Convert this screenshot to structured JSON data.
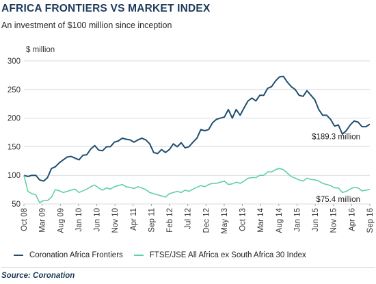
{
  "header": {
    "title": "AFRICA FRONTIERS VS MARKET INDEX",
    "subtitle": "An investment of $100 million since inception"
  },
  "chart_data": {
    "type": "line",
    "title": "AFRICA FRONTIERS VS MARKET INDEX",
    "subtitle": "An investment of $100 million since inception",
    "ylabel": "$ million",
    "xlabel": "",
    "ylim": [
      50,
      300
    ],
    "yticks": [
      50,
      100,
      150,
      200,
      250,
      300
    ],
    "x_tick_labels": [
      "Oct 08",
      "Mar 09",
      "Aug 09",
      "Jan 10",
      "Jun 10",
      "Nov 10",
      "Apr 11",
      "Sep 11",
      "Feb 12",
      "Jul 12",
      "Dec 12",
      "May 13",
      "Oct 13",
      "Mar 14",
      "Aug 14",
      "Jan 15",
      "Jun 15",
      "Nov 15",
      "Apr 16",
      "Sep 16"
    ],
    "grid": "horizontal",
    "legend_position": "bottom",
    "series": [
      {
        "name": "Coronation Africa Frontiers",
        "color": "#1e4e6e",
        "end_label": "$189.3 million",
        "values": [
          100,
          98,
          100,
          100,
          92,
          90,
          96,
          112,
          115,
          122,
          127,
          132,
          133,
          130,
          127,
          135,
          136,
          146,
          152,
          144,
          143,
          150,
          150,
          158,
          160,
          165,
          163,
          162,
          158,
          162,
          165,
          162,
          155,
          140,
          138,
          145,
          140,
          145,
          155,
          150,
          157,
          148,
          150,
          158,
          165,
          180,
          178,
          180,
          192,
          198,
          200,
          202,
          215,
          200,
          215,
          205,
          218,
          230,
          235,
          230,
          240,
          240,
          252,
          255,
          265,
          272,
          273,
          263,
          255,
          250,
          240,
          238,
          248,
          240,
          232,
          215,
          205,
          205,
          198,
          186,
          188,
          172,
          178,
          188,
          195,
          193,
          185,
          185,
          189.3
        ]
      },
      {
        "name": "FTSE/JSE All Africa ex South Africa 30 Index",
        "color": "#5fcfa5",
        "end_label": "$75.4 million",
        "values": [
          100,
          72,
          68,
          66,
          52,
          56,
          56,
          62,
          75,
          73,
          70,
          72,
          74,
          76,
          70,
          73,
          76,
          80,
          83,
          78,
          74,
          78,
          76,
          80,
          82,
          84,
          80,
          79,
          77,
          80,
          78,
          75,
          70,
          68,
          66,
          64,
          62,
          68,
          70,
          72,
          70,
          74,
          72,
          76,
          79,
          82,
          80,
          84,
          86,
          86,
          88,
          90,
          84,
          85,
          88,
          86,
          90,
          95,
          96,
          96,
          100,
          100,
          106,
          106,
          110,
          112,
          110,
          104,
          98,
          95,
          92,
          90,
          95,
          93,
          92,
          90,
          86,
          84,
          82,
          78,
          78,
          70,
          72,
          76,
          79,
          78,
          73,
          74,
          75.4
        ]
      }
    ]
  },
  "source": "Source: Coronation"
}
